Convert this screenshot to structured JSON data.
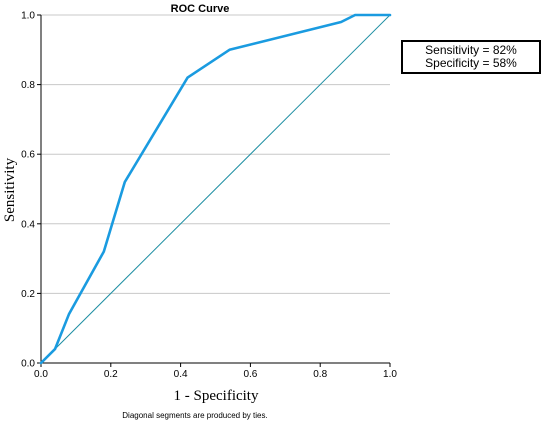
{
  "chart_data": {
    "type": "line",
    "title": "ROC Curve",
    "xlabel": "1 - Specificity",
    "ylabel": "Sensitivity",
    "xlim": [
      0,
      1
    ],
    "ylim": [
      0,
      1
    ],
    "xticks": [
      "0.0",
      "0.2",
      "0.4",
      "0.6",
      "0.8",
      "1.0"
    ],
    "yticks": [
      "0.0",
      "0.2",
      "0.4",
      "0.6",
      "0.8",
      "1.0"
    ],
    "grid": "horizontal",
    "series": [
      {
        "role": "roc-curve",
        "color": "#1a9be0",
        "x": [
          0.0,
          0.04,
          0.08,
          0.18,
          0.24,
          0.42,
          0.54,
          0.86,
          0.9,
          1.0
        ],
        "y": [
          0.0,
          0.04,
          0.14,
          0.32,
          0.52,
          0.82,
          0.9,
          0.98,
          1.0,
          1.0
        ]
      },
      {
        "role": "reference-line",
        "color": "#1f8fa3",
        "x": [
          0.0,
          1.0
        ],
        "y": [
          0.0,
          1.0
        ]
      }
    ],
    "annotation": {
      "line1": "Sensitivity = 82%",
      "line2": "Specificity = 58%"
    },
    "footnote": "Diagonal segments are produced by ties."
  }
}
